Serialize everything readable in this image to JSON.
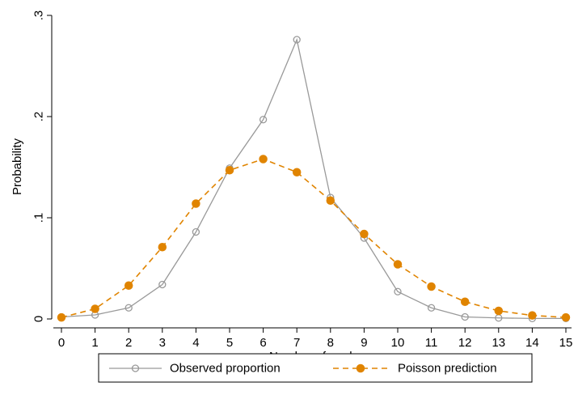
{
  "chart_data": {
    "type": "line",
    "xlabel": "Number of goals",
    "ylabel": "Probability",
    "x": [
      0,
      1,
      2,
      3,
      4,
      5,
      6,
      7,
      8,
      9,
      10,
      11,
      12,
      13,
      14,
      15
    ],
    "xlim": [
      0,
      15
    ],
    "ylim": [
      0,
      0.3
    ],
    "x_ticks": [
      "0",
      "1",
      "2",
      "3",
      "4",
      "5",
      "6",
      "7",
      "8",
      "9",
      "10",
      "11",
      "12",
      "13",
      "14",
      "15"
    ],
    "y_ticks": [
      {
        "value": 0,
        "label": "0"
      },
      {
        "value": 0.1,
        "label": ".1"
      },
      {
        "value": 0.2,
        "label": ".2"
      },
      {
        "value": 0.3,
        "label": ".3"
      }
    ],
    "grid": false,
    "legend_position": "bottom",
    "series": [
      {
        "name": "Observed proportion",
        "values": [
          0.002,
          0.004,
          0.011,
          0.034,
          0.086,
          0.149,
          0.197,
          0.276,
          0.12,
          0.08,
          0.027,
          0.011,
          0.002,
          0.001,
          0.0005,
          0.0005
        ],
        "color": "#999999",
        "line_style": "solid",
        "marker": "hollow-circle"
      },
      {
        "name": "Poisson prediction",
        "values": [
          0.0015,
          0.01,
          0.033,
          0.071,
          0.114,
          0.147,
          0.158,
          0.145,
          0.117,
          0.084,
          0.054,
          0.032,
          0.017,
          0.008,
          0.0035,
          0.0015
        ],
        "color": "#e08400",
        "line_style": "dashed",
        "marker": "filled-circle"
      }
    ]
  }
}
